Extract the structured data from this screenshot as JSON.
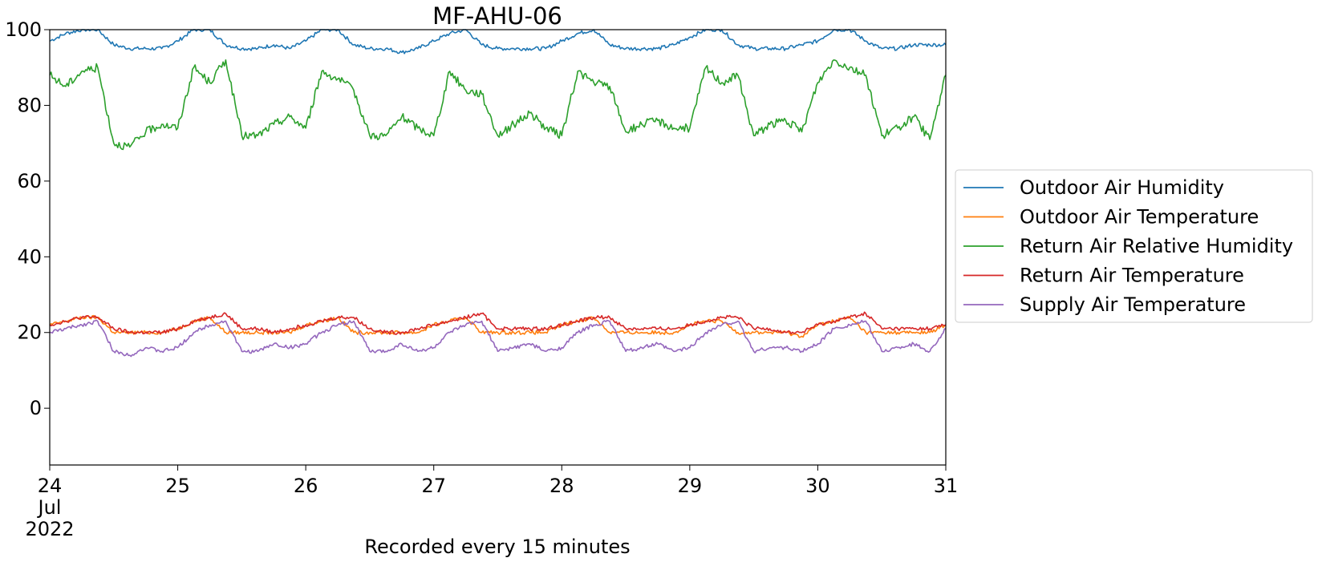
{
  "chart_data": {
    "type": "line",
    "title": "MF-AHU-06",
    "xlabel": "Recorded every 15 minutes",
    "ylabel": "",
    "xlim": [
      "2022-07-24",
      "2022-07-31"
    ],
    "ylim": [
      -15,
      100
    ],
    "x_ticks": [
      {
        "date": "2022-07-24",
        "label": "24",
        "sublabel": "Jul",
        "sublabel2": "2022"
      },
      {
        "date": "2022-07-25",
        "label": "25"
      },
      {
        "date": "2022-07-26",
        "label": "26"
      },
      {
        "date": "2022-07-27",
        "label": "27"
      },
      {
        "date": "2022-07-28",
        "label": "28"
      },
      {
        "date": "2022-07-29",
        "label": "29"
      },
      {
        "date": "2022-07-30",
        "label": "30"
      },
      {
        "date": "2022-07-31",
        "label": "31"
      }
    ],
    "y_ticks": [
      0,
      20,
      40,
      60,
      80,
      100
    ],
    "grid": false,
    "legend": "outside-right",
    "x": [
      "2022-07-24 00:00",
      "2022-07-24 03:00",
      "2022-07-24 06:00",
      "2022-07-24 09:00",
      "2022-07-24 12:00",
      "2022-07-24 15:00",
      "2022-07-24 18:00",
      "2022-07-24 21:00",
      "2022-07-25 00:00",
      "2022-07-25 03:00",
      "2022-07-25 06:00",
      "2022-07-25 09:00",
      "2022-07-25 12:00",
      "2022-07-25 15:00",
      "2022-07-25 18:00",
      "2022-07-25 21:00",
      "2022-07-26 00:00",
      "2022-07-26 03:00",
      "2022-07-26 06:00",
      "2022-07-26 09:00",
      "2022-07-26 12:00",
      "2022-07-26 15:00",
      "2022-07-26 18:00",
      "2022-07-26 21:00",
      "2022-07-27 00:00",
      "2022-07-27 03:00",
      "2022-07-27 06:00",
      "2022-07-27 09:00",
      "2022-07-27 12:00",
      "2022-07-27 15:00",
      "2022-07-27 18:00",
      "2022-07-27 21:00",
      "2022-07-28 00:00",
      "2022-07-28 03:00",
      "2022-07-28 06:00",
      "2022-07-28 09:00",
      "2022-07-28 12:00",
      "2022-07-28 15:00",
      "2022-07-28 18:00",
      "2022-07-28 21:00",
      "2022-07-29 00:00",
      "2022-07-29 03:00",
      "2022-07-29 06:00",
      "2022-07-29 09:00",
      "2022-07-29 12:00",
      "2022-07-29 15:00",
      "2022-07-29 18:00",
      "2022-07-29 21:00",
      "2022-07-30 00:00",
      "2022-07-30 03:00",
      "2022-07-30 06:00",
      "2022-07-30 09:00",
      "2022-07-30 12:00",
      "2022-07-30 15:00",
      "2022-07-30 18:00",
      "2022-07-30 21:00",
      "2022-07-31 00:00"
    ],
    "series": [
      {
        "name": "Outdoor Air Humidity",
        "color": "#1f77b4",
        "values": [
          97,
          99,
          100,
          100,
          96,
          95,
          95,
          95,
          97,
          100,
          100,
          96,
          95,
          95,
          96,
          95,
          97,
          100,
          100,
          96,
          95,
          95,
          94,
          95,
          97,
          99,
          100,
          96,
          95,
          95,
          95,
          95,
          97,
          99,
          100,
          96,
          95,
          95,
          95,
          96,
          98,
          100,
          100,
          96,
          95,
          95,
          95,
          96,
          97,
          100,
          100,
          97,
          95,
          95,
          96,
          96,
          96
        ]
      },
      {
        "name": "Outdoor Air Temperature",
        "color": "#ff7f0e",
        "values": [
          22,
          23,
          24,
          24,
          20,
          20,
          20,
          20,
          21,
          23,
          24,
          20,
          20,
          20,
          20,
          20,
          22,
          23,
          24,
          20,
          20,
          20,
          20,
          20,
          22,
          23,
          24,
          20,
          20,
          20,
          20,
          20,
          22,
          23,
          24,
          20,
          20,
          20,
          20,
          20,
          22,
          23,
          23,
          20,
          20,
          20,
          20,
          19,
          22,
          23,
          24,
          20,
          20,
          20,
          20,
          20,
          22
        ]
      },
      {
        "name": "Return Air Relative Humidity",
        "color": "#2ca02c",
        "values": [
          88,
          85,
          89,
          90,
          70,
          69,
          73,
          75,
          74,
          90,
          86,
          92,
          72,
          72,
          75,
          77,
          74,
          89,
          87,
          84,
          72,
          72,
          77,
          74,
          72,
          89,
          84,
          83,
          72,
          75,
          78,
          74,
          72,
          89,
          86,
          85,
          73,
          75,
          76,
          74,
          74,
          90,
          86,
          88,
          72,
          75,
          76,
          73,
          86,
          92,
          90,
          88,
          72,
          74,
          77,
          71,
          88
        ]
      },
      {
        "name": "Return Air Temperature",
        "color": "#d62728",
        "values": [
          22,
          23,
          24,
          24,
          21,
          20,
          20,
          20,
          21,
          23,
          24,
          25,
          21,
          21,
          20,
          21,
          22,
          23,
          24,
          24,
          21,
          20,
          20,
          21,
          22,
          23,
          24,
          25,
          21,
          21,
          21,
          21,
          22,
          23,
          24,
          24,
          21,
          21,
          21,
          21,
          22,
          23,
          24,
          24,
          21,
          21,
          20,
          20,
          22,
          23,
          24,
          25,
          21,
          21,
          21,
          21,
          22
        ]
      },
      {
        "name": "Supply Air Temperature",
        "color": "#9467bd",
        "values": [
          20,
          21,
          22,
          23,
          15,
          14,
          16,
          15,
          16,
          20,
          22,
          23,
          15,
          15,
          17,
          16,
          17,
          20,
          22,
          23,
          15,
          15,
          17,
          15,
          16,
          20,
          22,
          23,
          15,
          16,
          17,
          15,
          16,
          20,
          22,
          23,
          15,
          16,
          17,
          15,
          16,
          20,
          22,
          23,
          15,
          16,
          16,
          15,
          17,
          21,
          22,
          23,
          15,
          16,
          17,
          15,
          21
        ]
      }
    ]
  }
}
